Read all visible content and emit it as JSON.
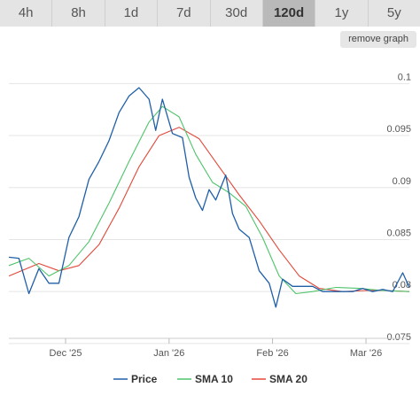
{
  "tabs": [
    {
      "label": "4h",
      "active": false
    },
    {
      "label": "8h",
      "active": false
    },
    {
      "label": "1d",
      "active": false
    },
    {
      "label": "7d",
      "active": false
    },
    {
      "label": "30d",
      "active": false
    },
    {
      "label": "120d",
      "active": true
    },
    {
      "label": "1y",
      "active": false
    },
    {
      "label": "5y",
      "active": false
    }
  ],
  "remove_graph_label": "remove graph",
  "colors": {
    "price": "#1f5fa8",
    "sma10": "#4ec46a",
    "sma20": "#e2483a",
    "grid": "#e5e5e5",
    "text": "#555555"
  },
  "chart_data": {
    "type": "line",
    "x_ticks": [
      "Dec '25",
      "Jan '26",
      "Feb '26",
      "Mar '26"
    ],
    "x_tick_dates": [
      "2025-12-01",
      "2026-01-01",
      "2026-02-01",
      "2026-03-01"
    ],
    "x_range": [
      "2025-11-14",
      "2026-03-14"
    ],
    "ylim": [
      0.0755,
      0.1025
    ],
    "y_ticks": [
      0.075,
      0.08,
      0.085,
      0.09,
      0.095,
      0.1
    ],
    "y_tick_labels": [
      "0.075",
      "0.08",
      "0.085",
      "0.09",
      "0.095",
      "0.1"
    ],
    "grid": true,
    "legend_position": "bottom",
    "series": [
      {
        "name": "Price",
        "x": [
          "2025-11-14",
          "2025-11-17",
          "2025-11-20",
          "2025-11-23",
          "2025-11-26",
          "2025-11-29",
          "2025-12-02",
          "2025-12-05",
          "2025-12-08",
          "2025-12-11",
          "2025-12-14",
          "2025-12-17",
          "2025-12-20",
          "2025-12-23",
          "2025-12-26",
          "2025-12-28",
          "2025-12-30",
          "2026-01-02",
          "2026-01-05",
          "2026-01-07",
          "2026-01-09",
          "2026-01-11",
          "2026-01-13",
          "2026-01-15",
          "2026-01-18",
          "2026-01-20",
          "2026-01-22",
          "2026-01-25",
          "2026-01-28",
          "2026-01-31",
          "2026-02-02",
          "2026-02-04",
          "2026-02-07",
          "2026-02-10",
          "2026-02-13",
          "2026-02-16",
          "2026-02-19",
          "2026-02-22",
          "2026-02-25",
          "2026-02-28",
          "2026-03-03",
          "2026-03-06",
          "2026-03-09",
          "2026-03-12",
          "2026-03-14"
        ],
        "values": [
          0.0833,
          0.0832,
          0.0798,
          0.0822,
          0.0808,
          0.0808,
          0.0852,
          0.0872,
          0.0908,
          0.0925,
          0.0945,
          0.0972,
          0.0988,
          0.0996,
          0.0985,
          0.0955,
          0.0985,
          0.0952,
          0.0948,
          0.091,
          0.089,
          0.0878,
          0.0898,
          0.0888,
          0.0912,
          0.0875,
          0.086,
          0.0852,
          0.082,
          0.0808,
          0.0785,
          0.0812,
          0.0805,
          0.0805,
          0.0805,
          0.08,
          0.08,
          0.08,
          0.08,
          0.0803,
          0.08,
          0.0802,
          0.08,
          0.0818,
          0.0804
        ]
      },
      {
        "name": "SMA 10",
        "x": [
          "2025-11-14",
          "2025-11-20",
          "2025-11-26",
          "2025-12-02",
          "2025-12-08",
          "2025-12-14",
          "2025-12-20",
          "2025-12-26",
          "2025-12-30",
          "2026-01-04",
          "2026-01-09",
          "2026-01-14",
          "2026-01-19",
          "2026-01-24",
          "2026-01-29",
          "2026-02-03",
          "2026-02-08",
          "2026-02-13",
          "2026-02-20",
          "2026-02-27",
          "2026-03-06",
          "2026-03-14"
        ],
        "values": [
          0.0825,
          0.0832,
          0.0815,
          0.0825,
          0.0848,
          0.0885,
          0.0925,
          0.0963,
          0.0978,
          0.0968,
          0.0932,
          0.0905,
          0.0895,
          0.0882,
          0.0852,
          0.0815,
          0.0798,
          0.08,
          0.0804,
          0.0803,
          0.0801,
          0.08
        ]
      },
      {
        "name": "SMA 20",
        "x": [
          "2025-11-14",
          "2025-11-23",
          "2025-11-29",
          "2025-12-05",
          "2025-12-11",
          "2025-12-17",
          "2025-12-23",
          "2025-12-29",
          "2026-01-04",
          "2026-01-10",
          "2026-01-16",
          "2026-01-22",
          "2026-01-28",
          "2026-02-03",
          "2026-02-09",
          "2026-02-15",
          "2026-02-22",
          "2026-03-01",
          "2026-03-07",
          "2026-03-14"
        ],
        "values": [
          0.0815,
          0.0827,
          0.082,
          0.0825,
          0.0845,
          0.088,
          0.092,
          0.095,
          0.0958,
          0.0947,
          0.092,
          0.0893,
          0.0868,
          0.084,
          0.0815,
          0.0803,
          0.08,
          0.0801,
          0.0801,
          0.08
        ]
      }
    ]
  }
}
